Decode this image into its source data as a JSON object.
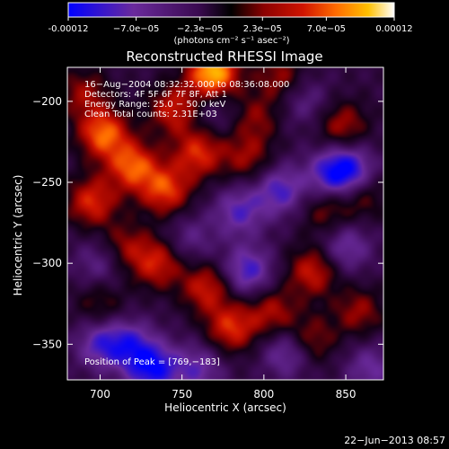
{
  "chart_data": {
    "type": "heatmap",
    "title": "Reconstructed RHESSI Image",
    "xlabel": "Heliocentric X (arcsec)",
    "ylabel": "Heliocentric Y (arcsec)",
    "xlim": [
      680,
      873
    ],
    "ylim": [
      -372,
      -179
    ],
    "x_ticks": [
      700,
      750,
      800,
      850
    ],
    "y_ticks": [
      -200,
      -250,
      -300,
      -350
    ],
    "colorbar": {
      "ticks": [
        "-0.00012",
        "−7.0e−05",
        "−2.3e−05",
        "2.3e−05",
        "7.0e−05",
        "0.00012"
      ],
      "tick_values": [
        -0.00012,
        -7e-05,
        -2.3e-05,
        2.3e-05,
        7e-05,
        0.00012
      ],
      "range": [
        -0.00012,
        0.00012
      ],
      "units_label": "(photons cm⁻² s⁻¹ asec⁻²)",
      "colors": [
        "#0000ff",
        "#6a2a9c",
        "#3a0a50",
        "#000000",
        "#8b0000",
        "#d01400",
        "#ff6a00",
        "#ffc000",
        "#ffffff"
      ]
    },
    "annotations": [
      "16−Aug−2004 08:32:32.000 to 08:36:08.000",
      "Detectors: 4F 5F 6F 7F 8F, Att 1",
      "Energy Range: 25.0 − 50.0 keV",
      "Clean     Total counts: 2.31E+03"
    ],
    "peak_label": "Position of Peak = [769,−183]",
    "peak": [
      769,
      -183
    ],
    "sources": [
      {
        "x": 769,
        "y": -183,
        "v": 1.0
      },
      {
        "x": 745,
        "y": -205,
        "v": 0.55
      },
      {
        "x": 702,
        "y": -220,
        "v": 0.75
      },
      {
        "x": 720,
        "y": -240,
        "v": 0.7
      },
      {
        "x": 695,
        "y": -262,
        "v": 0.6
      },
      {
        "x": 740,
        "y": -255,
        "v": 0.65
      },
      {
        "x": 760,
        "y": -232,
        "v": 0.6
      },
      {
        "x": 735,
        "y": -300,
        "v": 0.55
      },
      {
        "x": 715,
        "y": -290,
        "v": 0.4
      },
      {
        "x": 765,
        "y": -315,
        "v": 0.55
      },
      {
        "x": 780,
        "y": -340,
        "v": 0.6
      },
      {
        "x": 805,
        "y": -330,
        "v": 0.45
      },
      {
        "x": 790,
        "y": -235,
        "v": 0.4
      },
      {
        "x": 795,
        "y": -210,
        "v": 0.35
      },
      {
        "x": 810,
        "y": -185,
        "v": 0.4
      },
      {
        "x": 848,
        "y": -215,
        "v": 0.45
      },
      {
        "x": 838,
        "y": -268,
        "v": 0.35
      },
      {
        "x": 830,
        "y": -305,
        "v": 0.55
      },
      {
        "x": 828,
        "y": -348,
        "v": 0.45
      },
      {
        "x": 858,
        "y": -330,
        "v": 0.4
      },
      {
        "x": 860,
        "y": -258,
        "v": 0.35
      },
      {
        "x": 700,
        "y": -325,
        "v": 0.3
      },
      {
        "x": 690,
        "y": -195,
        "v": 0.4
      },
      {
        "x": 810,
        "y": -255,
        "v": -0.55
      },
      {
        "x": 852,
        "y": -243,
        "v": -0.7
      },
      {
        "x": 840,
        "y": -245,
        "v": -0.45
      },
      {
        "x": 785,
        "y": -268,
        "v": -0.5
      },
      {
        "x": 790,
        "y": -305,
        "v": -0.6
      },
      {
        "x": 755,
        "y": -285,
        "v": -0.3
      },
      {
        "x": 732,
        "y": -365,
        "v": -0.75
      },
      {
        "x": 718,
        "y": -350,
        "v": -0.5
      },
      {
        "x": 700,
        "y": -350,
        "v": -0.5
      },
      {
        "x": 850,
        "y": -290,
        "v": -0.45
      },
      {
        "x": 770,
        "y": -205,
        "v": -0.25
      },
      {
        "x": 815,
        "y": -355,
        "v": -0.5
      },
      {
        "x": 865,
        "y": -365,
        "v": -0.4
      },
      {
        "x": 700,
        "y": -300,
        "v": -0.35
      },
      {
        "x": 825,
        "y": -200,
        "v": -0.3
      },
      {
        "x": 760,
        "y": -365,
        "v": -0.45
      }
    ]
  },
  "footer_date": "22−Jun−2013 08:57"
}
